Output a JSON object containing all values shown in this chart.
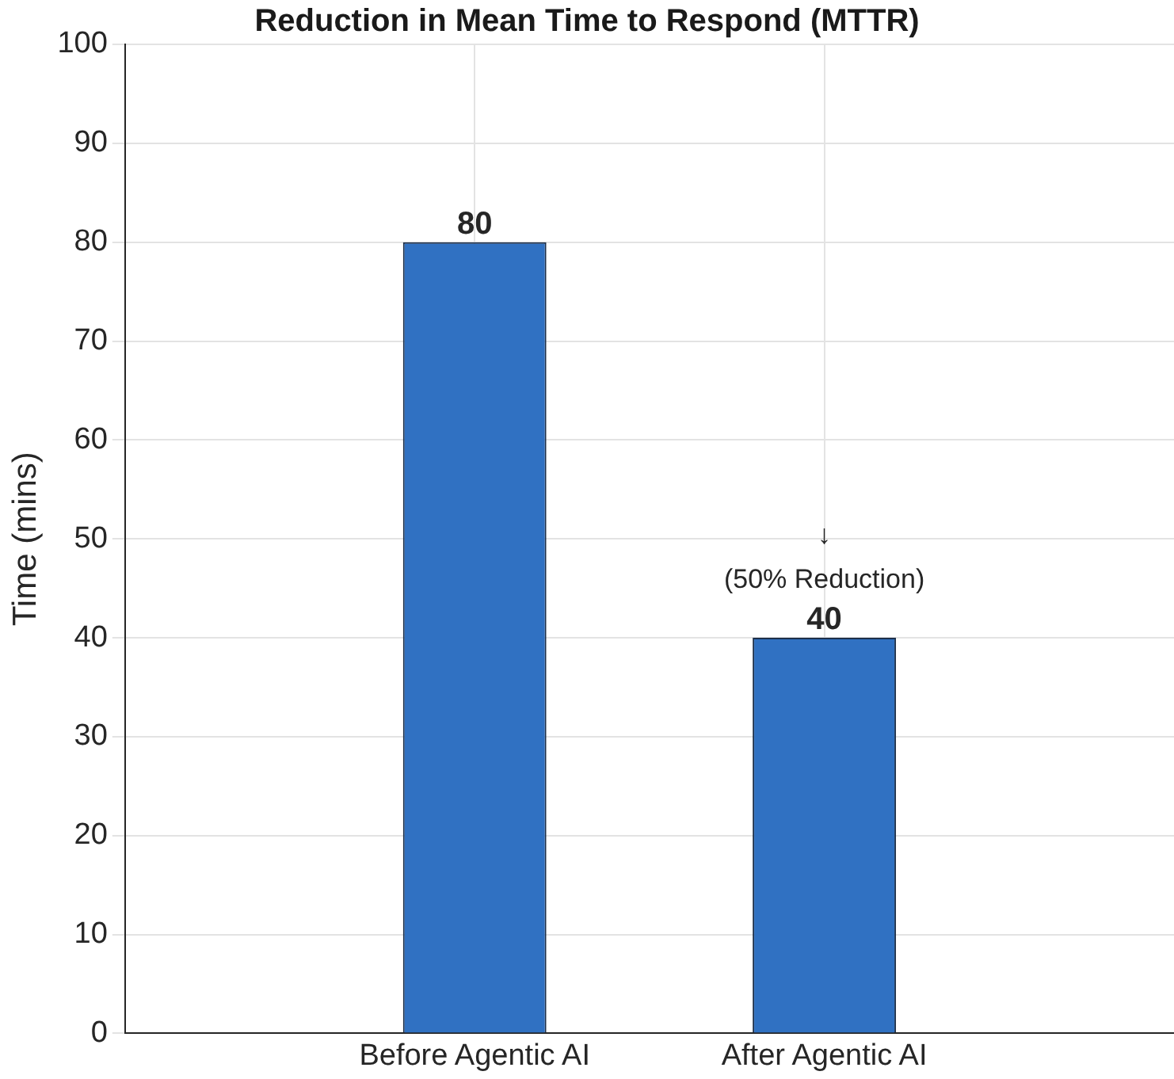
{
  "chart_data": {
    "type": "bar",
    "title": "Reduction in Mean Time to Respond (MTTR)",
    "ylabel": "Time (mins)",
    "categories": [
      "Before Agentic AI",
      "After Agentic AI"
    ],
    "values": [
      80,
      40
    ],
    "color": "#3071c2",
    "ylim": [
      0,
      100
    ],
    "yticks": [
      0,
      10,
      20,
      30,
      40,
      50,
      60,
      70,
      80,
      90,
      100
    ],
    "grid": true,
    "data_labels": true,
    "annotations": [
      "↓",
      "(50% Reduction)"
    ]
  }
}
